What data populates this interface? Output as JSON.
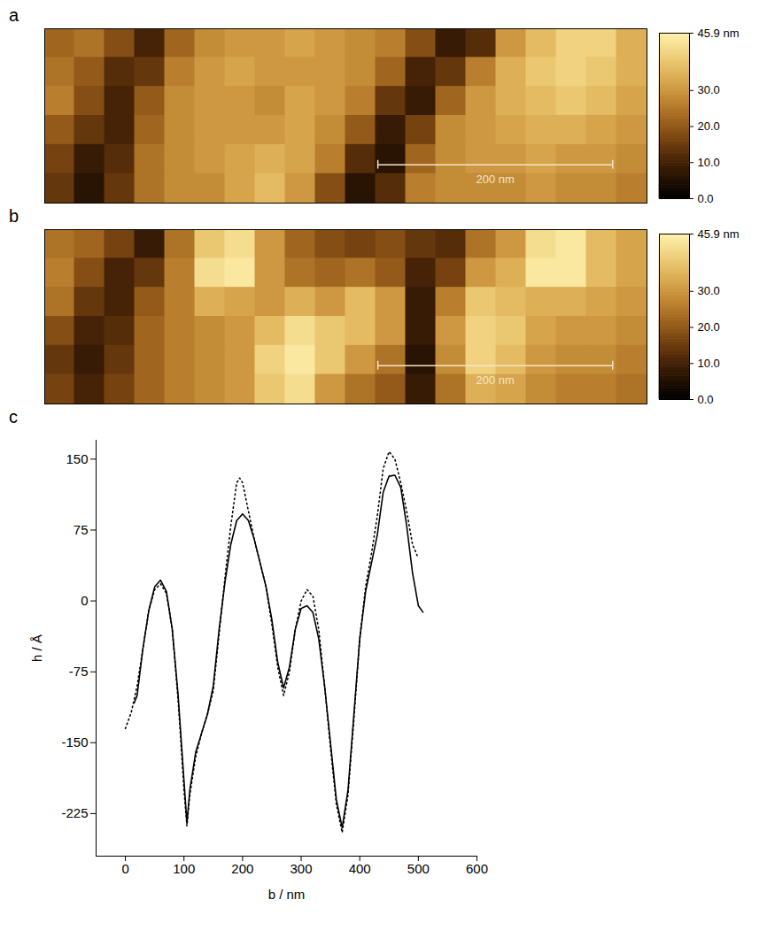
{
  "chart_data": [
    {
      "type": "heatmap",
      "panel_label": "a",
      "tick_labels": false,
      "xlim": [
        0,
        513
      ],
      "ylim": [
        0,
        149
      ],
      "scale_bar": {
        "length": 200,
        "label": "200 nm"
      },
      "color_range": [
        0,
        45.9
      ],
      "color_ticks": [
        {
          "value": 45.9,
          "label": "45.9 nm"
        },
        {
          "value": 30,
          "label": "30.0"
        },
        {
          "value": 20,
          "label": "20.0"
        },
        {
          "value": 10,
          "label": "10.0"
        },
        {
          "value": 0,
          "label": "0.0"
        }
      ],
      "cells": [
        [
          22,
          24,
          18,
          10,
          22,
          28,
          30,
          30,
          32,
          30,
          28,
          26,
          18,
          8,
          12,
          30,
          36,
          40,
          40,
          34
        ],
        [
          24,
          20,
          12,
          14,
          26,
          30,
          32,
          30,
          30,
          30,
          28,
          22,
          10,
          14,
          26,
          34,
          38,
          40,
          38,
          34
        ],
        [
          26,
          18,
          10,
          20,
          28,
          30,
          30,
          28,
          32,
          30,
          26,
          14,
          8,
          22,
          30,
          34,
          36,
          38,
          36,
          32
        ],
        [
          20,
          14,
          10,
          22,
          28,
          30,
          30,
          30,
          32,
          28,
          20,
          8,
          16,
          28,
          30,
          32,
          34,
          34,
          32,
          30
        ],
        [
          16,
          8,
          12,
          24,
          28,
          30,
          32,
          34,
          32,
          26,
          12,
          6,
          22,
          28,
          30,
          30,
          32,
          30,
          30,
          28
        ],
        [
          14,
          6,
          14,
          24,
          28,
          28,
          32,
          36,
          30,
          18,
          6,
          12,
          26,
          28,
          28,
          28,
          30,
          28,
          28,
          26
        ]
      ]
    },
    {
      "type": "heatmap",
      "panel_label": "b",
      "tick_labels": false,
      "xlim": [
        0,
        513
      ],
      "ylim": [
        0,
        149
      ],
      "scale_bar": {
        "length": 200,
        "label": "200 nm"
      },
      "color_range": [
        0,
        45.9
      ],
      "color_ticks": [
        {
          "value": 45.9,
          "label": "45.9 nm"
        },
        {
          "value": 30,
          "label": "30.0"
        },
        {
          "value": 20,
          "label": "20.0"
        },
        {
          "value": 10,
          "label": "10.0"
        },
        {
          "value": 0,
          "label": "0.0"
        }
      ],
      "cells": [
        [
          24,
          22,
          16,
          8,
          24,
          38,
          42,
          30,
          22,
          18,
          16,
          18,
          14,
          12,
          24,
          30,
          42,
          44,
          36,
          32
        ],
        [
          26,
          18,
          10,
          14,
          26,
          42,
          44,
          30,
          24,
          22,
          24,
          20,
          10,
          16,
          30,
          34,
          44,
          44,
          36,
          32
        ],
        [
          24,
          14,
          10,
          20,
          26,
          34,
          32,
          30,
          34,
          30,
          36,
          30,
          8,
          26,
          38,
          36,
          34,
          34,
          32,
          30
        ],
        [
          18,
          10,
          12,
          22,
          26,
          28,
          30,
          36,
          42,
          38,
          36,
          30,
          8,
          30,
          40,
          38,
          32,
          30,
          30,
          28
        ],
        [
          14,
          8,
          14,
          22,
          26,
          28,
          30,
          40,
          44,
          38,
          30,
          24,
          6,
          28,
          40,
          36,
          30,
          28,
          28,
          26
        ],
        [
          16,
          10,
          16,
          22,
          26,
          28,
          30,
          38,
          42,
          30,
          24,
          20,
          8,
          24,
          34,
          32,
          28,
          26,
          26,
          24
        ]
      ]
    },
    {
      "type": "line",
      "panel_label": "c",
      "grid": false,
      "x_label": "b / nm",
      "y_label": "h / Å",
      "xlim": [
        -50,
        600
      ],
      "xticks": [
        0,
        100,
        200,
        300,
        400,
        500,
        600
      ],
      "ylim": [
        -270,
        170
      ],
      "yticks": [
        -225,
        -150,
        -75,
        0,
        75,
        150
      ],
      "series": [
        {
          "color": "#000000",
          "line_style": "solid",
          "x": [
            15,
            20,
            30,
            40,
            50,
            60,
            70,
            80,
            90,
            100,
            105,
            110,
            120,
            130,
            140,
            150,
            160,
            170,
            180,
            190,
            200,
            210,
            220,
            230,
            240,
            250,
            260,
            270,
            280,
            290,
            300,
            310,
            320,
            330,
            340,
            350,
            360,
            370,
            380,
            390,
            400,
            410,
            420,
            430,
            440,
            450,
            460,
            470,
            480,
            490,
            500,
            508
          ],
          "values": [
            -108,
            -100,
            -50,
            -10,
            15,
            22,
            10,
            -30,
            -100,
            -190,
            -235,
            -200,
            -160,
            -140,
            -120,
            -90,
            -30,
            20,
            60,
            85,
            92,
            85,
            65,
            40,
            15,
            -20,
            -65,
            -92,
            -70,
            -30,
            -8,
            -5,
            -12,
            -40,
            -90,
            -150,
            -210,
            -240,
            -200,
            -120,
            -40,
            10,
            40,
            70,
            115,
            132,
            133,
            120,
            80,
            30,
            -5,
            -12
          ]
        },
        {
          "color": "#000000",
          "line_style": "dotted",
          "x": [
            0,
            10,
            20,
            30,
            40,
            50,
            60,
            70,
            80,
            90,
            100,
            105,
            110,
            120,
            130,
            140,
            150,
            160,
            170,
            180,
            190,
            195,
            200,
            210,
            220,
            230,
            240,
            250,
            260,
            270,
            280,
            290,
            300,
            310,
            320,
            330,
            340,
            350,
            360,
            370,
            380,
            390,
            400,
            410,
            420,
            430,
            440,
            450,
            460,
            470,
            480,
            490,
            498
          ],
          "values": [
            -135,
            -118,
            -90,
            -50,
            -10,
            12,
            18,
            8,
            -30,
            -105,
            -200,
            -238,
            -205,
            -165,
            -140,
            -120,
            -95,
            -35,
            25,
            80,
            125,
            130,
            125,
            95,
            65,
            40,
            15,
            -25,
            -70,
            -100,
            -75,
            -30,
            0,
            12,
            5,
            -30,
            -90,
            -155,
            -215,
            -245,
            -205,
            -125,
            -40,
            15,
            50,
            90,
            140,
            158,
            150,
            125,
            95,
            60,
            48
          ]
        }
      ]
    }
  ]
}
